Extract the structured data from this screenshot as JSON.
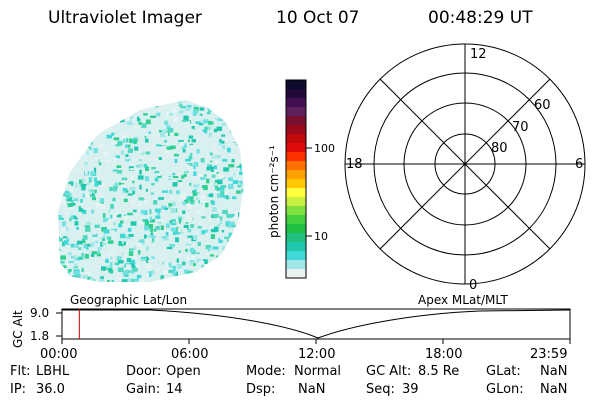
{
  "header": {
    "instrument": "Ultraviolet Imager",
    "date": "10 Oct 07",
    "time": "00:48:29 UT"
  },
  "colorbar": {
    "unit_label": "photon cm⁻²s⁻¹",
    "tick_labels": [
      "100",
      "10"
    ],
    "colors": [
      "#0a0a2a",
      "#200a3a",
      "#401050",
      "#602060",
      "#7a1030",
      "#9a0a1a",
      "#c00a0a",
      "#e00a0a",
      "#ff3000",
      "#ff7000",
      "#ffa000",
      "#ffc800",
      "#ffff40",
      "#c8f040",
      "#80e040",
      "#40d040",
      "#20c040",
      "#20c080",
      "#20c8b0",
      "#40d8d8",
      "#a0e8e8",
      "#e8f0f0"
    ]
  },
  "polar_plot": {
    "mlt_labels": [
      "12",
      "18",
      "6",
      "0"
    ],
    "lat_labels": [
      "60",
      "70",
      "80"
    ]
  },
  "timeline": {
    "y_axis_label": "GC Alt",
    "y_ticks": [
      "9.0",
      "1.8"
    ],
    "left_title": "Geographic Lat/Lon",
    "right_title": "Apex MLat/MLT",
    "x_ticks": [
      "00:00",
      "06:00",
      "12:00",
      "18:00",
      "23:59"
    ],
    "current_time_fraction": 0.034
  },
  "info": {
    "row1": [
      {
        "label": "Flt:",
        "value": "LBHL"
      },
      {
        "label": "Door:",
        "value": "Open"
      },
      {
        "label": "Mode:",
        "value": "Normal"
      },
      {
        "label": "GC Alt:",
        "value": "8.5 Re"
      },
      {
        "label": "GLat:",
        "value": "NaN"
      }
    ],
    "row2": [
      {
        "label": "IP:",
        "value": "36.0"
      },
      {
        "label": "Gain:",
        "value": "14"
      },
      {
        "label": "Dsp:",
        "value": "NaN"
      },
      {
        "label": "Seq:",
        "value": "39"
      },
      {
        "label": "GLon:",
        "value": "NaN"
      }
    ]
  }
}
